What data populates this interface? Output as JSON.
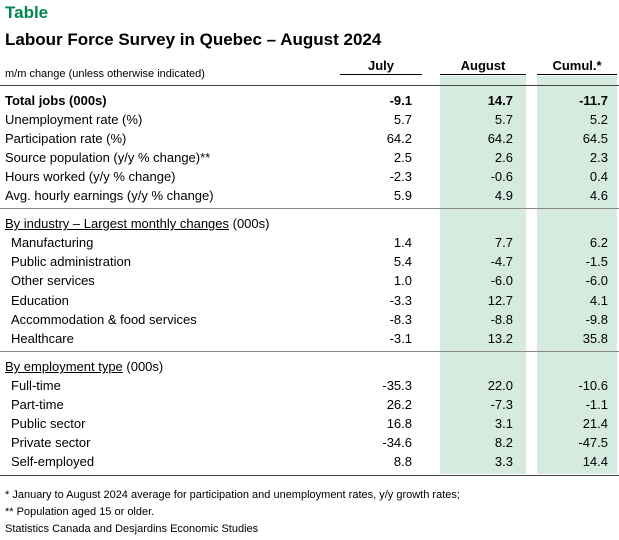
{
  "kicker": "Table",
  "title": "Labour Force Survey in Quebec – August 2024",
  "subheader": "m/m change (unless otherwise indicated)",
  "columns": {
    "jul": "July",
    "aug": "August",
    "cum": "Cumul.*"
  },
  "summary_rows": [
    {
      "label": "Total jobs (000s)",
      "jul": "-9.1",
      "aug": "14.7",
      "cum": "-11.7"
    },
    {
      "label": "Unemployment rate (%)",
      "jul": "5.7",
      "aug": "5.7",
      "cum": "5.2"
    },
    {
      "label": "Participation rate (%)",
      "jul": "64.2",
      "aug": "64.2",
      "cum": "64.5"
    },
    {
      "label": "Source population (y/y % change)**",
      "jul": "2.5",
      "aug": "2.6",
      "cum": "2.3"
    },
    {
      "label": "Hours worked (y/y % change)",
      "jul": "-2.3",
      "aug": "-0.6",
      "cum": "0.4"
    },
    {
      "label": "Avg. hourly earnings (y/y % change)",
      "jul": "5.9",
      "aug": "4.9",
      "cum": "4.6"
    }
  ],
  "industry": {
    "heading": "By industry – Largest monthly changes",
    "unit": " (000s)",
    "rows": [
      {
        "label": "Manufacturing",
        "jul": "1.4",
        "aug": "7.7",
        "cum": "6.2"
      },
      {
        "label": "Public administration",
        "jul": "5.4",
        "aug": "-4.7",
        "cum": "-1.5"
      },
      {
        "label": "Other services",
        "jul": "1.0",
        "aug": "-6.0",
        "cum": "-6.0"
      },
      {
        "label": "Education",
        "jul": "-3.3",
        "aug": "12.7",
        "cum": "4.1"
      },
      {
        "label": "Accommodation & food services",
        "jul": "-8.3",
        "aug": "-8.8",
        "cum": "-9.8"
      },
      {
        "label": "Healthcare",
        "jul": "-3.1",
        "aug": "13.2",
        "cum": "35.8"
      }
    ]
  },
  "employment": {
    "heading": "By employment type",
    "unit": " (000s)",
    "rows": [
      {
        "label": "Full-time",
        "jul": "-35.3",
        "aug": "22.0",
        "cum": "-10.6"
      },
      {
        "label": "Part-time",
        "jul": "26.2",
        "aug": "-7.3",
        "cum": "-1.1"
      },
      {
        "label": "Public sector",
        "jul": "16.8",
        "aug": "3.1",
        "cum": "21.4"
      },
      {
        "label": "Private sector",
        "jul": "-34.6",
        "aug": "8.2",
        "cum": "-47.5"
      },
      {
        "label": "Self-employed",
        "jul": "8.8",
        "aug": "3.3",
        "cum": "14.4"
      }
    ]
  },
  "notes": [
    "* January to August 2024 average for participation and unemployment rates, y/y growth rates;",
    "** Population aged 15 or older.",
    "Statistics Canada and Desjardins Economic Studies"
  ]
}
